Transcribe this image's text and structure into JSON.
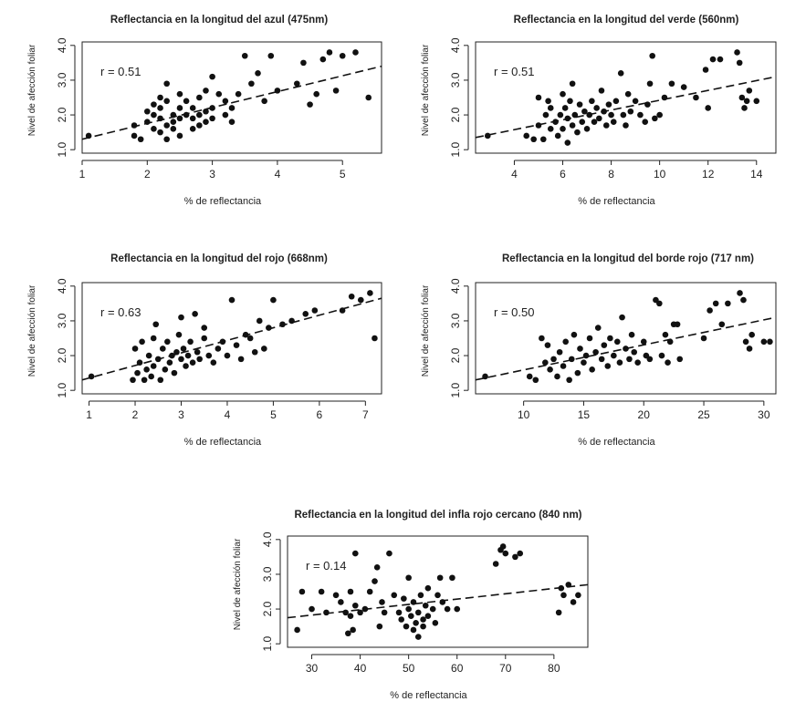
{
  "chart_data": [
    {
      "type": "scatter",
      "title": "Reflectancia en la longitud del azul (475nm)",
      "xlabel": "% de reflectancia",
      "ylabel": "Nivel de afección foliar",
      "annotation": "r = 0.51",
      "xlim": [
        1.0,
        5.6
      ],
      "ylim": [
        0.9,
        4.1
      ],
      "xticks": [
        1,
        2,
        3,
        4,
        5
      ],
      "xtick_labels": [
        "1",
        "2",
        "3",
        "4",
        "5"
      ],
      "yticks": [
        1.0,
        2.0,
        3.0,
        4.0
      ],
      "ytick_labels": [
        "1.0",
        "2.0",
        "3.0",
        "4.0"
      ],
      "trend": {
        "x": [
          1.0,
          5.6
        ],
        "y": [
          1.3,
          3.4
        ]
      },
      "points": [
        [
          1.1,
          1.4
        ],
        [
          1.8,
          1.4
        ],
        [
          1.8,
          1.7
        ],
        [
          1.9,
          1.3
        ],
        [
          2.0,
          2.1
        ],
        [
          2.0,
          1.8
        ],
        [
          2.1,
          2.3
        ],
        [
          2.1,
          1.6
        ],
        [
          2.1,
          2.0
        ],
        [
          2.2,
          2.5
        ],
        [
          2.2,
          1.9
        ],
        [
          2.2,
          1.5
        ],
        [
          2.2,
          2.2
        ],
        [
          2.3,
          1.7
        ],
        [
          2.3,
          2.9
        ],
        [
          2.3,
          1.3
        ],
        [
          2.3,
          2.4
        ],
        [
          2.4,
          2.0
        ],
        [
          2.4,
          1.8
        ],
        [
          2.4,
          1.6
        ],
        [
          2.5,
          2.6
        ],
        [
          2.5,
          2.2
        ],
        [
          2.5,
          1.9
        ],
        [
          2.5,
          1.4
        ],
        [
          2.6,
          2.0
        ],
        [
          2.6,
          2.4
        ],
        [
          2.7,
          1.6
        ],
        [
          2.7,
          1.9
        ],
        [
          2.7,
          2.2
        ],
        [
          2.8,
          2.5
        ],
        [
          2.8,
          2.0
        ],
        [
          2.8,
          1.7
        ],
        [
          2.9,
          1.8
        ],
        [
          2.9,
          2.7
        ],
        [
          2.9,
          2.1
        ],
        [
          3.0,
          3.1
        ],
        [
          3.0,
          2.2
        ],
        [
          3.0,
          1.9
        ],
        [
          3.1,
          2.6
        ],
        [
          3.2,
          2.0
        ],
        [
          3.2,
          2.4
        ],
        [
          3.3,
          2.2
        ],
        [
          3.3,
          1.8
        ],
        [
          3.4,
          2.6
        ],
        [
          3.5,
          3.7
        ],
        [
          3.6,
          2.9
        ],
        [
          3.7,
          3.2
        ],
        [
          3.8,
          2.4
        ],
        [
          3.9,
          3.7
        ],
        [
          4.0,
          2.7
        ],
        [
          4.3,
          2.9
        ],
        [
          4.4,
          3.5
        ],
        [
          4.5,
          2.3
        ],
        [
          4.6,
          2.6
        ],
        [
          4.7,
          3.6
        ],
        [
          4.8,
          3.8
        ],
        [
          4.9,
          2.7
        ],
        [
          5.0,
          3.7
        ],
        [
          5.2,
          3.8
        ],
        [
          5.4,
          2.5
        ]
      ]
    },
    {
      "type": "scatter",
      "title": "Reflectancia en la longitud del verde (560nm)",
      "xlabel": "% de reflectancia",
      "ylabel": "Nivel de afección foliar",
      "annotation": "r = 0.51",
      "xlim": [
        2.4,
        14.8
      ],
      "ylim": [
        0.9,
        4.1
      ],
      "xticks": [
        4,
        6,
        8,
        10,
        12,
        14
      ],
      "xtick_labels": [
        "4",
        "6",
        "8",
        "10",
        "12",
        "14"
      ],
      "yticks": [
        1.0,
        2.0,
        3.0,
        4.0
      ],
      "ytick_labels": [
        "1.0",
        "2.0",
        "3.0",
        "4.0"
      ],
      "trend": {
        "x": [
          2.4,
          14.8
        ],
        "y": [
          1.35,
          3.1
        ]
      },
      "points": [
        [
          2.9,
          1.4
        ],
        [
          4.5,
          1.4
        ],
        [
          4.8,
          1.3
        ],
        [
          5.0,
          1.7
        ],
        [
          5.0,
          2.5
        ],
        [
          5.2,
          1.3
        ],
        [
          5.3,
          2.0
        ],
        [
          5.4,
          2.4
        ],
        [
          5.5,
          1.6
        ],
        [
          5.5,
          2.2
        ],
        [
          5.7,
          1.8
        ],
        [
          5.8,
          1.4
        ],
        [
          5.9,
          2.0
        ],
        [
          6.0,
          2.6
        ],
        [
          6.0,
          1.6
        ],
        [
          6.1,
          2.2
        ],
        [
          6.2,
          1.2
        ],
        [
          6.2,
          1.9
        ],
        [
          6.3,
          2.4
        ],
        [
          6.4,
          2.9
        ],
        [
          6.4,
          1.7
        ],
        [
          6.5,
          2.0
        ],
        [
          6.6,
          1.5
        ],
        [
          6.7,
          2.3
        ],
        [
          6.8,
          1.8
        ],
        [
          6.9,
          2.1
        ],
        [
          7.0,
          1.6
        ],
        [
          7.1,
          2.0
        ],
        [
          7.2,
          2.4
        ],
        [
          7.3,
          1.8
        ],
        [
          7.4,
          2.2
        ],
        [
          7.5,
          1.9
        ],
        [
          7.6,
          2.7
        ],
        [
          7.7,
          2.1
        ],
        [
          7.8,
          1.7
        ],
        [
          7.9,
          2.3
        ],
        [
          8.0,
          2.0
        ],
        [
          8.1,
          1.8
        ],
        [
          8.2,
          2.4
        ],
        [
          8.4,
          3.2
        ],
        [
          8.5,
          2.0
        ],
        [
          8.6,
          1.7
        ],
        [
          8.7,
          2.6
        ],
        [
          8.8,
          2.1
        ],
        [
          9.0,
          2.4
        ],
        [
          9.2,
          2.0
        ],
        [
          9.4,
          1.8
        ],
        [
          9.5,
          2.3
        ],
        [
          9.6,
          2.9
        ],
        [
          9.7,
          3.7
        ],
        [
          9.8,
          1.9
        ],
        [
          10.0,
          2.0
        ],
        [
          10.2,
          2.5
        ],
        [
          10.5,
          2.9
        ],
        [
          11.0,
          2.8
        ],
        [
          11.5,
          2.5
        ],
        [
          11.9,
          3.3
        ],
        [
          12.0,
          2.2
        ],
        [
          12.2,
          3.6
        ],
        [
          12.5,
          3.6
        ],
        [
          13.2,
          3.8
        ],
        [
          13.3,
          3.5
        ],
        [
          13.4,
          2.5
        ],
        [
          13.5,
          2.2
        ],
        [
          13.6,
          2.4
        ],
        [
          13.7,
          2.7
        ],
        [
          14.0,
          2.4
        ]
      ]
    },
    {
      "type": "scatter",
      "title": "Reflectancia en la longitud del rojo (668nm)",
      "xlabel": "% de reflectancia",
      "ylabel": "Nivel de afección foliar",
      "annotation": "r = 0.63",
      "xlim": [
        0.85,
        7.35
      ],
      "ylim": [
        0.9,
        4.1
      ],
      "xticks": [
        1,
        2,
        3,
        4,
        5,
        6,
        7
      ],
      "xtick_labels": [
        "1",
        "2",
        "3",
        "4",
        "5",
        "6",
        "7"
      ],
      "yticks": [
        1.0,
        2.0,
        3.0,
        4.0
      ],
      "ytick_labels": [
        "1.0",
        "2.0",
        "3.0",
        "4.0"
      ],
      "trend": {
        "x": [
          0.85,
          7.35
        ],
        "y": [
          1.3,
          3.65
        ]
      },
      "points": [
        [
          1.05,
          1.4
        ],
        [
          1.95,
          1.3
        ],
        [
          2.0,
          2.2
        ],
        [
          2.05,
          1.5
        ],
        [
          2.1,
          1.8
        ],
        [
          2.15,
          2.4
        ],
        [
          2.2,
          1.3
        ],
        [
          2.25,
          1.6
        ],
        [
          2.3,
          2.0
        ],
        [
          2.35,
          1.4
        ],
        [
          2.4,
          2.5
        ],
        [
          2.4,
          1.7
        ],
        [
          2.45,
          2.9
        ],
        [
          2.5,
          1.9
        ],
        [
          2.55,
          1.3
        ],
        [
          2.6,
          2.2
        ],
        [
          2.65,
          1.6
        ],
        [
          2.7,
          2.4
        ],
        [
          2.75,
          1.8
        ],
        [
          2.8,
          2.0
        ],
        [
          2.85,
          1.5
        ],
        [
          2.9,
          2.1
        ],
        [
          2.95,
          2.6
        ],
        [
          3.0,
          1.9
        ],
        [
          3.0,
          3.1
        ],
        [
          3.05,
          2.2
        ],
        [
          3.1,
          1.7
        ],
        [
          3.15,
          2.0
        ],
        [
          3.2,
          2.4
        ],
        [
          3.25,
          1.8
        ],
        [
          3.3,
          3.2
        ],
        [
          3.35,
          2.1
        ],
        [
          3.4,
          1.9
        ],
        [
          3.5,
          2.5
        ],
        [
          3.5,
          2.8
        ],
        [
          3.6,
          2.0
        ],
        [
          3.7,
          1.8
        ],
        [
          3.8,
          2.2
        ],
        [
          3.9,
          2.4
        ],
        [
          4.0,
          2.0
        ],
        [
          4.1,
          3.6
        ],
        [
          4.2,
          2.3
        ],
        [
          4.3,
          1.9
        ],
        [
          4.4,
          2.6
        ],
        [
          4.5,
          2.5
        ],
        [
          4.6,
          2.1
        ],
        [
          4.7,
          3.0
        ],
        [
          4.8,
          2.2
        ],
        [
          4.9,
          2.8
        ],
        [
          5.0,
          3.6
        ],
        [
          5.2,
          2.9
        ],
        [
          5.4,
          3.0
        ],
        [
          5.7,
          3.2
        ],
        [
          5.9,
          3.3
        ],
        [
          6.5,
          3.3
        ],
        [
          6.7,
          3.7
        ],
        [
          6.9,
          3.6
        ],
        [
          7.1,
          3.8
        ],
        [
          7.2,
          2.5
        ]
      ]
    },
    {
      "type": "scatter",
      "title": "Reflectancia en la longitud del borde rojo (717 nm)",
      "xlabel": "% de reflectancia",
      "ylabel": "Nivel de afección foliar",
      "annotation": "r = 0.50",
      "xlim": [
        6.0,
        31.0
      ],
      "ylim": [
        0.9,
        4.1
      ],
      "xticks": [
        10,
        15,
        20,
        25,
        30
      ],
      "xtick_labels": [
        "10",
        "15",
        "20",
        "25",
        "30"
      ],
      "yticks": [
        1.0,
        2.0,
        3.0,
        4.0
      ],
      "ytick_labels": [
        "1.0",
        "2.0",
        "3.0",
        "4.0"
      ],
      "trend": {
        "x": [
          6.0,
          31.0
        ],
        "y": [
          1.3,
          3.1
        ]
      },
      "points": [
        [
          6.8,
          1.4
        ],
        [
          10.5,
          1.4
        ],
        [
          11.0,
          1.3
        ],
        [
          11.5,
          2.5
        ],
        [
          11.8,
          1.8
        ],
        [
          12.0,
          2.3
        ],
        [
          12.2,
          1.6
        ],
        [
          12.5,
          1.9
        ],
        [
          12.8,
          1.4
        ],
        [
          13.0,
          2.1
        ],
        [
          13.3,
          1.7
        ],
        [
          13.5,
          2.4
        ],
        [
          13.8,
          1.3
        ],
        [
          14.0,
          1.9
        ],
        [
          14.2,
          2.6
        ],
        [
          14.5,
          1.5
        ],
        [
          14.7,
          2.2
        ],
        [
          15.0,
          1.8
        ],
        [
          15.2,
          2.0
        ],
        [
          15.5,
          2.5
        ],
        [
          15.7,
          1.6
        ],
        [
          16.0,
          2.1
        ],
        [
          16.2,
          2.8
        ],
        [
          16.5,
          1.9
        ],
        [
          16.7,
          2.3
        ],
        [
          17.0,
          1.7
        ],
        [
          17.2,
          2.5
        ],
        [
          17.5,
          2.0
        ],
        [
          17.8,
          2.4
        ],
        [
          18.0,
          1.8
        ],
        [
          18.2,
          3.1
        ],
        [
          18.5,
          2.2
        ],
        [
          18.8,
          1.9
        ],
        [
          19.0,
          2.6
        ],
        [
          19.2,
          2.1
        ],
        [
          19.5,
          1.8
        ],
        [
          20.0,
          2.4
        ],
        [
          20.2,
          2.0
        ],
        [
          20.5,
          1.9
        ],
        [
          21.0,
          3.6
        ],
        [
          21.3,
          3.5
        ],
        [
          21.5,
          2.0
        ],
        [
          21.8,
          2.6
        ],
        [
          22.0,
          1.8
        ],
        [
          22.2,
          2.4
        ],
        [
          22.5,
          2.9
        ],
        [
          22.8,
          2.9
        ],
        [
          23.0,
          1.9
        ],
        [
          25.0,
          2.5
        ],
        [
          25.5,
          3.3
        ],
        [
          26.0,
          3.5
        ],
        [
          26.5,
          2.9
        ],
        [
          27.0,
          3.5
        ],
        [
          28.0,
          3.8
        ],
        [
          28.3,
          3.6
        ],
        [
          28.5,
          2.4
        ],
        [
          28.8,
          2.2
        ],
        [
          29.0,
          2.6
        ],
        [
          30.0,
          2.4
        ],
        [
          30.5,
          2.4
        ]
      ]
    },
    {
      "type": "scatter",
      "title": "Reflectancia en la longitud del infla rojo cercano (840 nm)",
      "xlabel": "% de reflectancia",
      "ylabel": "Nivel de afección foliar",
      "annotation": "r = 0.14",
      "xlim": [
        25.0,
        87.0
      ],
      "ylim": [
        0.9,
        4.1
      ],
      "xticks": [
        30,
        40,
        50,
        60,
        70,
        80
      ],
      "xtick_labels": [
        "30",
        "40",
        "50",
        "60",
        "70",
        "80"
      ],
      "yticks": [
        1.0,
        2.0,
        3.0,
        4.0
      ],
      "ytick_labels": [
        "1.0",
        "2.0",
        "3.0",
        "4.0"
      ],
      "trend": {
        "x": [
          25.0,
          87.0
        ],
        "y": [
          1.75,
          2.7
        ]
      },
      "points": [
        [
          27,
          1.4
        ],
        [
          28,
          2.5
        ],
        [
          30,
          2.0
        ],
        [
          32,
          2.5
        ],
        [
          33,
          1.9
        ],
        [
          35,
          2.4
        ],
        [
          36,
          2.2
        ],
        [
          37,
          1.9
        ],
        [
          37.5,
          1.3
        ],
        [
          38,
          2.5
        ],
        [
          38,
          1.8
        ],
        [
          38.5,
          1.4
        ],
        [
          39,
          3.6
        ],
        [
          39,
          2.1
        ],
        [
          40,
          1.9
        ],
        [
          41,
          2.0
        ],
        [
          42,
          2.5
        ],
        [
          43,
          2.8
        ],
        [
          43.5,
          3.2
        ],
        [
          44,
          1.5
        ],
        [
          44.5,
          2.2
        ],
        [
          45,
          1.9
        ],
        [
          46,
          3.6
        ],
        [
          47,
          2.4
        ],
        [
          48,
          1.9
        ],
        [
          48.5,
          1.7
        ],
        [
          49,
          2.3
        ],
        [
          49.5,
          1.5
        ],
        [
          50,
          2.0
        ],
        [
          50,
          2.9
        ],
        [
          50.5,
          1.8
        ],
        [
          51,
          1.4
        ],
        [
          51,
          2.2
        ],
        [
          51.5,
          1.6
        ],
        [
          52,
          1.9
        ],
        [
          52,
          1.2
        ],
        [
          52.5,
          2.4
        ],
        [
          53,
          1.7
        ],
        [
          53,
          1.5
        ],
        [
          53.5,
          2.1
        ],
        [
          54,
          1.8
        ],
        [
          54,
          2.6
        ],
        [
          55,
          2.0
        ],
        [
          55.5,
          1.6
        ],
        [
          56,
          2.4
        ],
        [
          56.5,
          2.9
        ],
        [
          57,
          2.2
        ],
        [
          58,
          2.0
        ],
        [
          59,
          2.9
        ],
        [
          60,
          2.0
        ],
        [
          68,
          3.3
        ],
        [
          69,
          3.7
        ],
        [
          69.5,
          3.8
        ],
        [
          70,
          3.6
        ],
        [
          72,
          3.5
        ],
        [
          73,
          3.6
        ],
        [
          81,
          1.9
        ],
        [
          81.5,
          2.6
        ],
        [
          82,
          2.4
        ],
        [
          83,
          2.7
        ],
        [
          84,
          2.2
        ],
        [
          85,
          2.4
        ]
      ]
    }
  ]
}
